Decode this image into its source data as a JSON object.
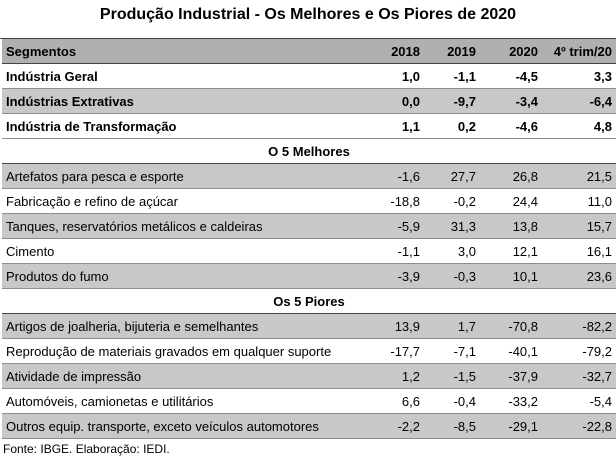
{
  "title": "Produção Industrial - Os Melhores e Os Piores de 2020",
  "header": {
    "segmentos": "Segmentos",
    "col_2018": "2018",
    "col_2019": "2019",
    "col_2020": "2020",
    "col_q4": "4º trim/20"
  },
  "aggregates": [
    {
      "name": "Indústria Geral",
      "v2018": "1,0",
      "v2019": "-1,1",
      "v2020": "-4,5",
      "q4": "3,3"
    },
    {
      "name": "Indústrias Extrativas",
      "v2018": "0,0",
      "v2019": "-9,7",
      "v2020": "-3,4",
      "q4": "-6,4"
    },
    {
      "name": "Indústria de Transformação",
      "v2018": "1,1",
      "v2019": "0,2",
      "v2020": "-4,6",
      "q4": "4,8"
    }
  ],
  "best_title": "O 5 Melhores",
  "best": [
    {
      "name": "Artefatos para pesca e esporte",
      "v2018": "-1,6",
      "v2019": "27,7",
      "v2020": "26,8",
      "q4": "21,5"
    },
    {
      "name": "Fabricação e refino de açúcar",
      "v2018": "-18,8",
      "v2019": "-0,2",
      "v2020": "24,4",
      "q4": "11,0"
    },
    {
      "name": "Tanques, reservatórios metálicos e caldeiras",
      "v2018": "-5,9",
      "v2019": "31,3",
      "v2020": "13,8",
      "q4": "15,7"
    },
    {
      "name": "Cimento",
      "v2018": "-1,1",
      "v2019": "3,0",
      "v2020": "12,1",
      "q4": "16,1"
    },
    {
      "name": "Produtos do fumo",
      "v2018": "-3,9",
      "v2019": "-0,3",
      "v2020": "10,1",
      "q4": "23,6"
    }
  ],
  "worst_title": "Os 5 Piores",
  "worst": [
    {
      "name": "Artigos de joalheria, bijuteria e semelhantes",
      "v2018": "13,9",
      "v2019": "1,7",
      "v2020": "-70,8",
      "q4": "-82,2"
    },
    {
      "name": "Reprodução de materiais gravados em qualquer suporte",
      "v2018": "-17,7",
      "v2019": "-7,1",
      "v2020": "-40,1",
      "q4": "-79,2"
    },
    {
      "name": " Atividade de impressão",
      "v2018": "1,2",
      "v2019": "-1,5",
      "v2020": "-37,9",
      "q4": "-32,7"
    },
    {
      "name": "Automóveis, camionetas e utilitários",
      "v2018": "6,6",
      "v2019": "-0,4",
      "v2020": "-33,2",
      "q4": "-5,4"
    },
    {
      "name": "Outros equip. transporte, exceto veículos automotores",
      "v2018": "-2,2",
      "v2019": "-8,5",
      "v2020": "-29,1",
      "q4": "-22,8"
    }
  ],
  "source": "Fonte: IBGE. Elaboração: IEDI."
}
